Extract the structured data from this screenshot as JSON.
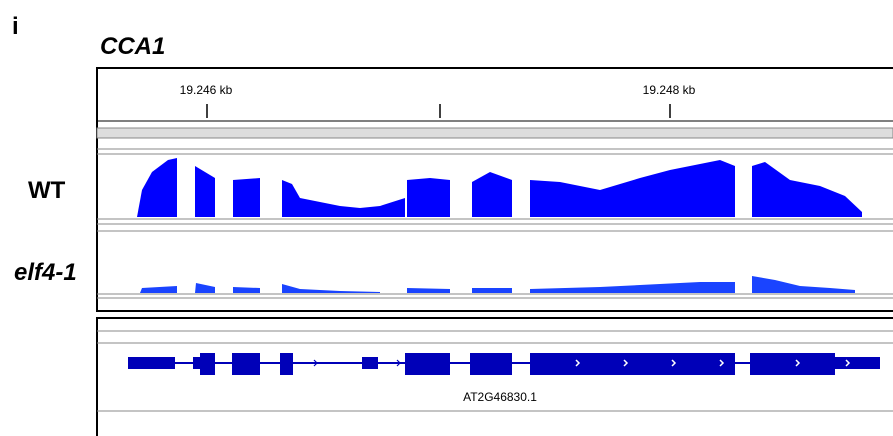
{
  "panel_label": "i",
  "gene_name": "CCA1",
  "ruler": {
    "ticks": [
      "19.246 kb",
      "19.248 kb"
    ]
  },
  "tracks": [
    "WT",
    "elf4-1"
  ],
  "transcript": "AT2G46830.1"
}
